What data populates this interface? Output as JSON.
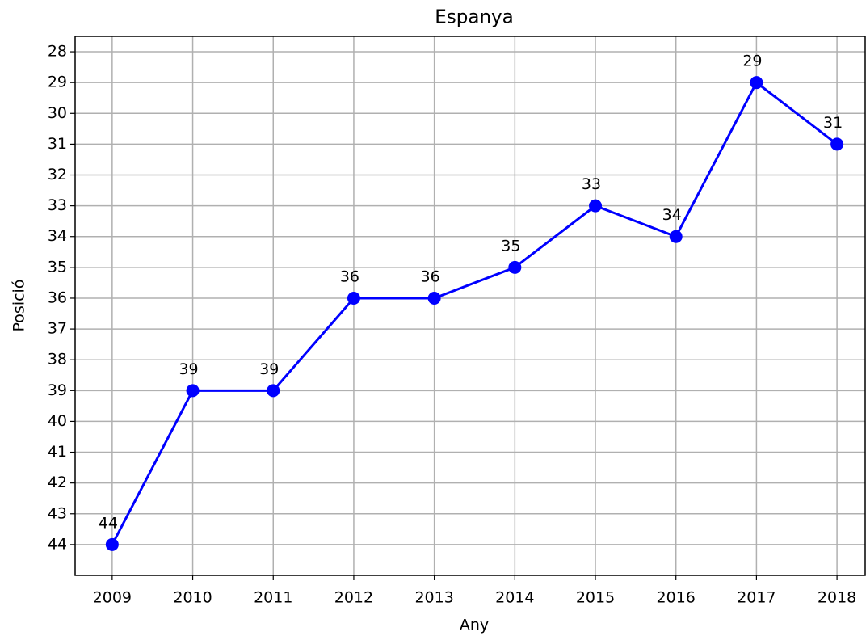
{
  "chart_data": {
    "type": "line",
    "title": "Espanya",
    "xlabel": "Any",
    "ylabel": "Posició",
    "x": [
      2009,
      2010,
      2011,
      2012,
      2013,
      2014,
      2015,
      2016,
      2017,
      2018
    ],
    "values": [
      44,
      39,
      39,
      36,
      36,
      35,
      33,
      34,
      29,
      31
    ],
    "color": "#0000ff",
    "xlim": [
      2008.54,
      2018.35
    ],
    "xticks": [
      2009,
      2010,
      2011,
      2012,
      2013,
      2014,
      2015,
      2016,
      2017,
      2018
    ],
    "ylim": [
      45,
      27.5
    ],
    "yticks": [
      28,
      29,
      30,
      31,
      32,
      33,
      34,
      35,
      36,
      37,
      38,
      39,
      40,
      41,
      42,
      43,
      44
    ],
    "grid": true
  }
}
